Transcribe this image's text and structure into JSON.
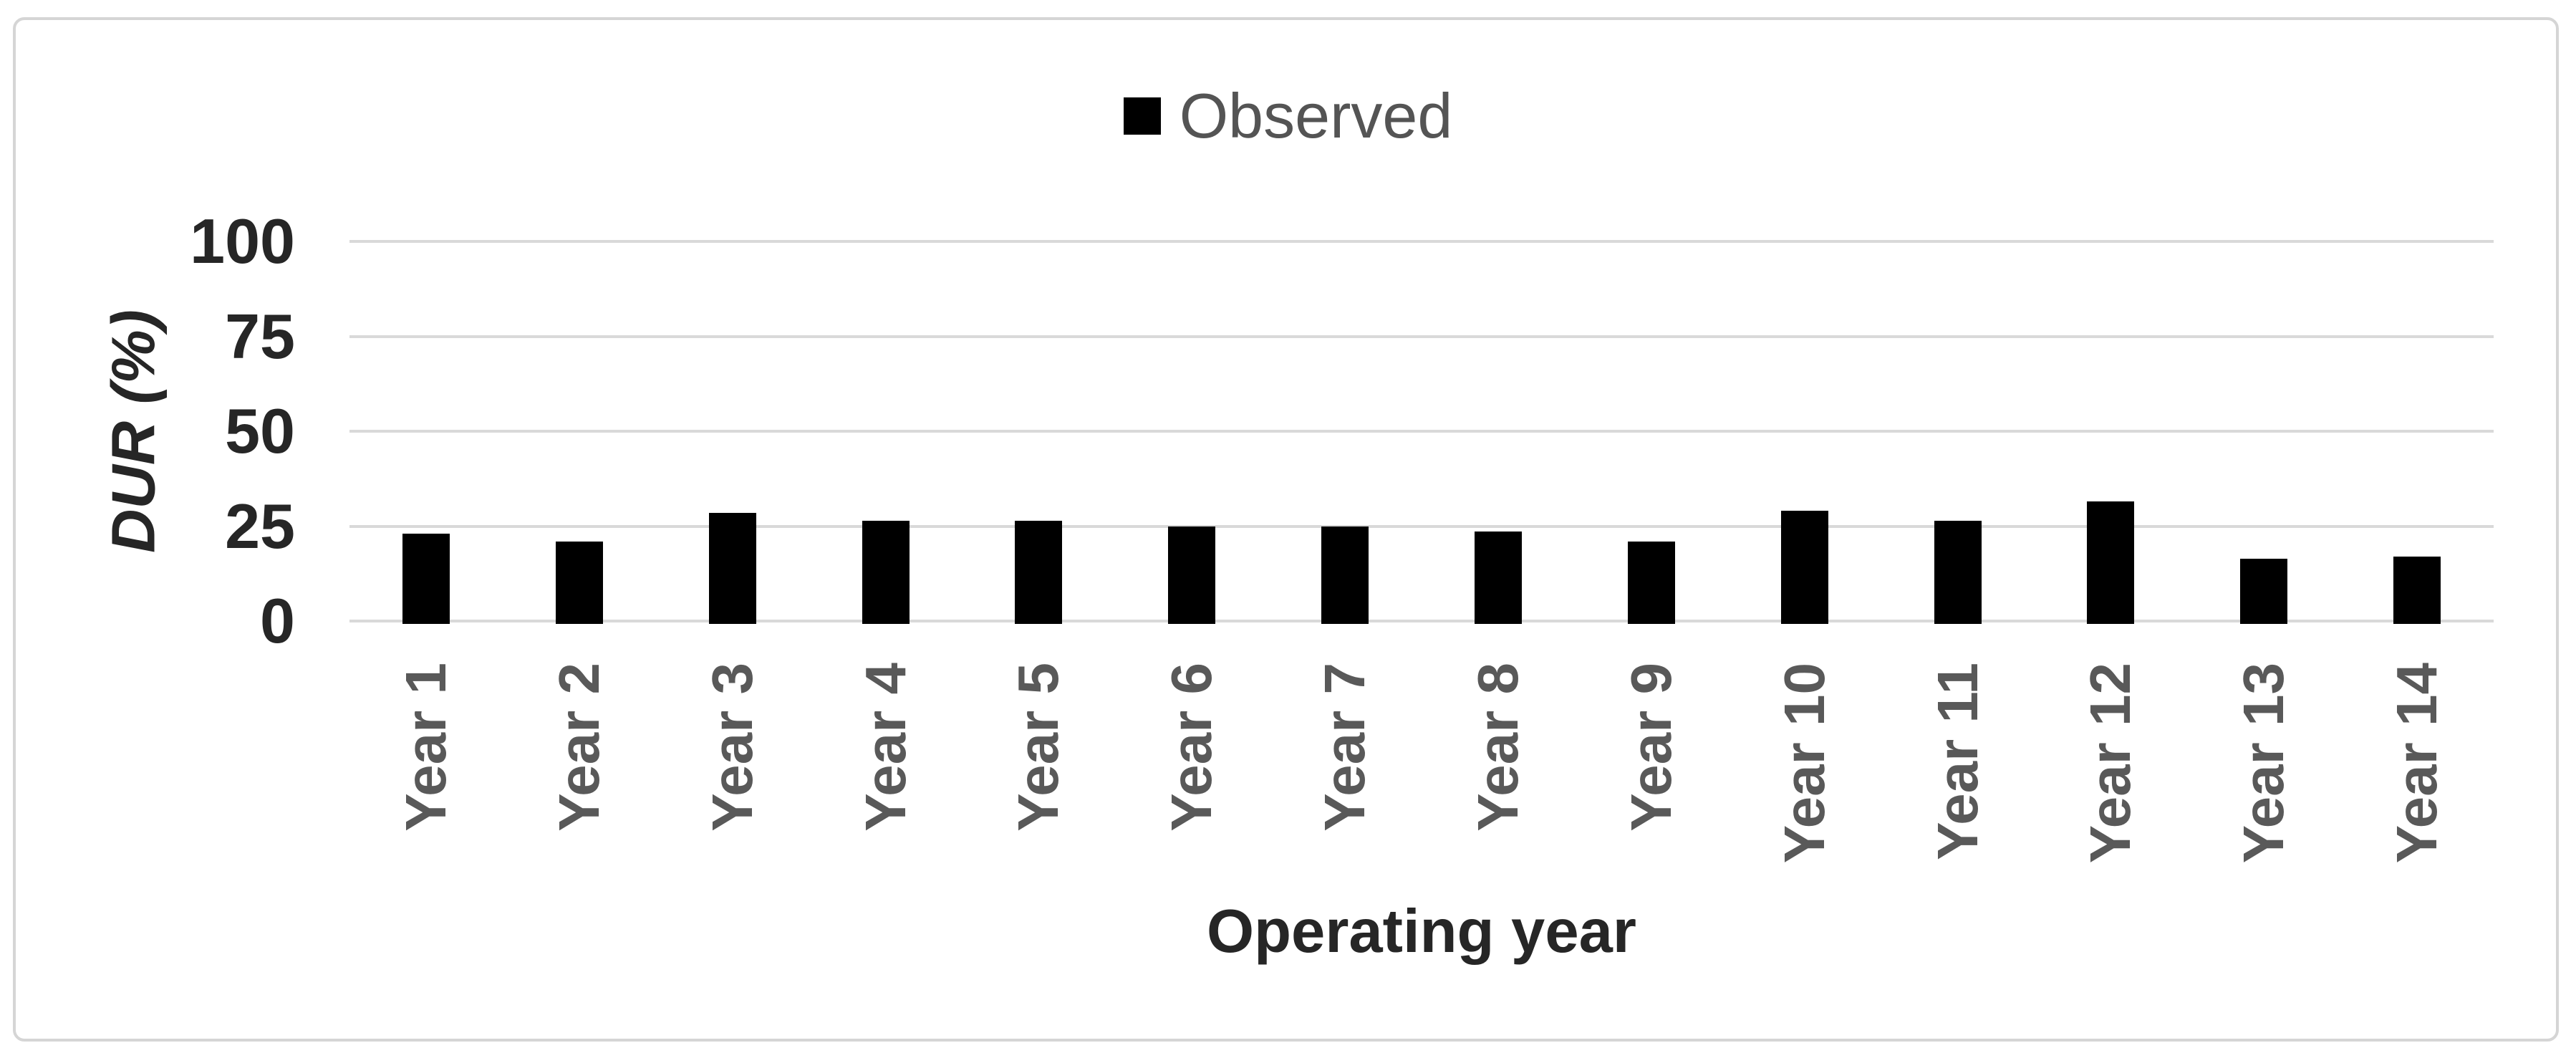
{
  "chart_data": {
    "type": "bar",
    "title": "",
    "categories": [
      "Year 1",
      "Year 2",
      "Year 3",
      "Year 4",
      "Year 5",
      "Year 6",
      "Year 7",
      "Year 8",
      "Year 9",
      "Year 10",
      "Year 11",
      "Year 12",
      "Year 13",
      "Year 14"
    ],
    "series": [
      {
        "name": "Observed",
        "color": "#000000",
        "values": [
          23,
          21,
          28.5,
          26.5,
          26.5,
          25,
          25,
          23.5,
          21,
          29,
          26.5,
          31.5,
          16.5,
          17
        ]
      }
    ],
    "xlabel": "Operating year",
    "ylabel": "DUR (%)",
    "ylim": [
      0,
      100
    ],
    "yticks": [
      0,
      25,
      50,
      75,
      100
    ],
    "grid": true,
    "legend_position": "top-center",
    "legend_marker": "filled-square",
    "colors": {
      "background": "#ffffff",
      "outer_border": "#d5d5d5",
      "gridline": "#d9d9d9",
      "bar": "#000000",
      "y_tick_text": "#262626",
      "x_tick_text": "#595959",
      "axis_title_text": "#262626",
      "legend_text": "#545454"
    }
  }
}
